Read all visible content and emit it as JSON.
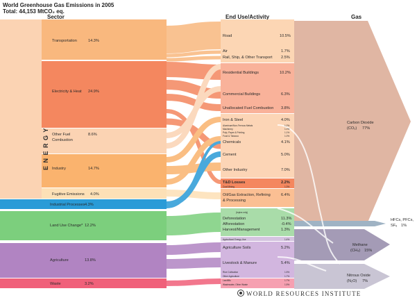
{
  "title": "World Greenhouse Gas Emissions in 2005",
  "subtitle": "Total: 44,153 MtCO₂ eq.",
  "headers": {
    "sector": "Sector",
    "end_use": "End Use/Activity",
    "gas": "Gas"
  },
  "energy_label": "E N E R G Y",
  "sectors": [
    {
      "name": "Transportation",
      "pct": "14.3%",
      "color": "#f9b87e"
    },
    {
      "name": "Electricity & Heat",
      "pct": "24.9%",
      "color": "#f4875f"
    },
    {
      "name": "Other Fuel Combustion",
      "pct": "8.6%",
      "color": "#fbd3b3"
    },
    {
      "name": "Industry",
      "pct": "14.7%",
      "color": "#fab36e"
    },
    {
      "name": "Fugitive Emissions",
      "pct": "4.0%",
      "color": "#fde0b6"
    },
    {
      "name": "Industrial Processes",
      "pct": "4.3%",
      "color": "#2a9bd7"
    },
    {
      "name": "Land Use Change*",
      "pct": "12.2%",
      "color": "#7ccf7d"
    },
    {
      "name": "Agriculture",
      "pct": "13.8%",
      "color": "#b184c2"
    },
    {
      "name": "Waste",
      "pct": "3.2%",
      "color": "#f0607a"
    }
  ],
  "end_uses": [
    {
      "name": "Road",
      "pct": "10.5%"
    },
    {
      "name": "Air",
      "pct": "1.7%"
    },
    {
      "name": "Rail, Ship, & Other Transport",
      "pct": "2.5%"
    },
    {
      "name": "Residential Buildings",
      "pct": "10.2%"
    },
    {
      "name": "Commercial Buildings",
      "pct": "6.3%"
    },
    {
      "name": "Unallocated Fuel Combustion",
      "pct": "3.8%"
    },
    {
      "name": "Iron & Steel",
      "pct": "4.0%"
    },
    {
      "name": "Chemicals",
      "pct": "4.1%"
    },
    {
      "name": "Cement",
      "pct": "5.0%"
    },
    {
      "name": "Other Industry",
      "pct": "7.0%"
    },
    {
      "name": "T&D Losses",
      "pct": "2.2%"
    },
    {
      "name": "Coal Mining",
      "pct": "1.3%"
    },
    {
      "name": "Oil/Gas Extraction, Refining & Processing",
      "pct": "6.4%"
    },
    {
      "name": "Deforestation",
      "pct": "11.3%"
    },
    {
      "name": "Afforestation",
      "pct": "-0.4%"
    },
    {
      "name": "Harvest/Management",
      "pct": "1.3%"
    },
    {
      "name": "Agricultural Energy Use",
      "pct": "1.4%"
    },
    {
      "name": "Agriculture Soils",
      "pct": "5.2%"
    },
    {
      "name": "Livestock & Manure",
      "pct": "5.4%"
    },
    {
      "name": "Rice Cultivation",
      "pct": "1.5%"
    },
    {
      "name": "Other Agriculture",
      "pct": "1.7%"
    },
    {
      "name": "Landfills",
      "pct": "1.7%"
    },
    {
      "name": "Wastewater, Other Waste",
      "pct": "1.5%"
    }
  ],
  "small_rows": [
    {
      "name": "Aluminum/Non-Ferrous Metals",
      "pct": "1.2%"
    },
    {
      "name": "Machinery",
      "pct": "1.0%"
    },
    {
      "name": "Pulp, Paper & Printing",
      "pct": "1.1%"
    },
    {
      "name": "Food & Tobacco",
      "pct": "1.0%"
    }
  ],
  "topics_only": "(topics only)",
  "gases": [
    {
      "name": "Carbon Dioxide",
      "formula": "(CO₂)",
      "pct": "77%"
    },
    {
      "name": "HFCs, PFCs,",
      "formula": "SF₆",
      "pct": "1%"
    },
    {
      "name": "Methane",
      "formula": "(CH₄)",
      "pct": "15%"
    },
    {
      "name": "Nitrous Oxide",
      "formula": "(N₂O)",
      "pct": "7%"
    }
  ],
  "footer": "WORLD RESOURCES INSTITUTE"
}
